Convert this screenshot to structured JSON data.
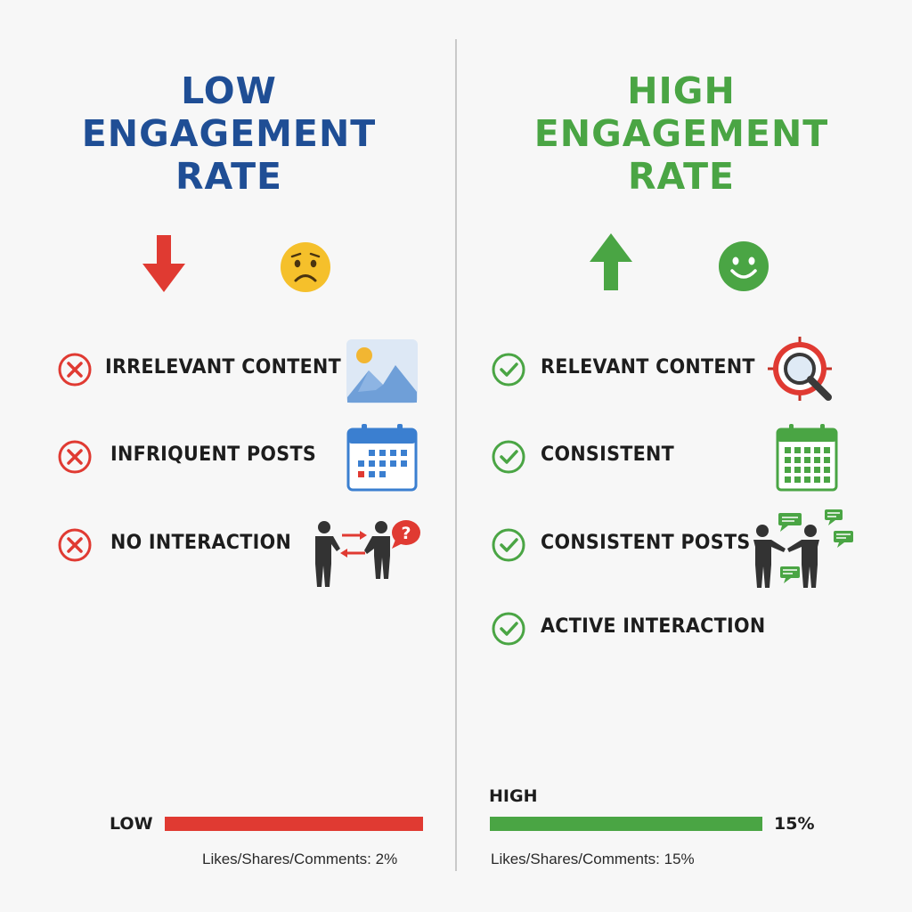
{
  "low": {
    "title_lines": [
      "LOW",
      "ENGAGEMENT",
      "RATE"
    ],
    "title_color": "#1f4e95",
    "trend_icon": "arrow-down-icon",
    "mood_icon": "sad-face-icon",
    "items": [
      {
        "label": "IRRELEVANT CONTENT",
        "status_icon": "x-circle-icon",
        "illustration": "landscape-image-icon"
      },
      {
        "label": "INFRIQUENT POSTS",
        "status_icon": "x-circle-icon",
        "illustration": "calendar-icon"
      },
      {
        "label": "NO INTERACTION",
        "status_icon": "x-circle-icon",
        "illustration": "people-question-icon"
      }
    ],
    "bar": {
      "label": "LOW",
      "color": "#e03a32",
      "caption": "Likes/Shares/Comments: 2%"
    }
  },
  "high": {
    "title_lines": [
      "HIGH",
      "ENGAGEMENT",
      "RATE"
    ],
    "title_color": "#4aa544",
    "trend_icon": "arrow-up-icon",
    "mood_icon": "smiley-face-icon",
    "items": [
      {
        "label": "RELEVANT CONTENT",
        "status_icon": "check-circle-icon",
        "illustration": "target-magnifier-icon"
      },
      {
        "label": "CONSISTENT",
        "status_icon": "check-circle-icon",
        "illustration": "calendar-icon"
      },
      {
        "label": "CONSISTENT POSTS",
        "status_icon": "check-circle-icon",
        "illustration": "people-handshake-icon"
      },
      {
        "label": "ACTIVE INTERACTION",
        "status_icon": "check-circle-icon"
      }
    ],
    "bar": {
      "label": "HIGH",
      "value_text": "15%",
      "color": "#4aa544",
      "caption": "Likes/Shares/Comments: 15%"
    }
  }
}
